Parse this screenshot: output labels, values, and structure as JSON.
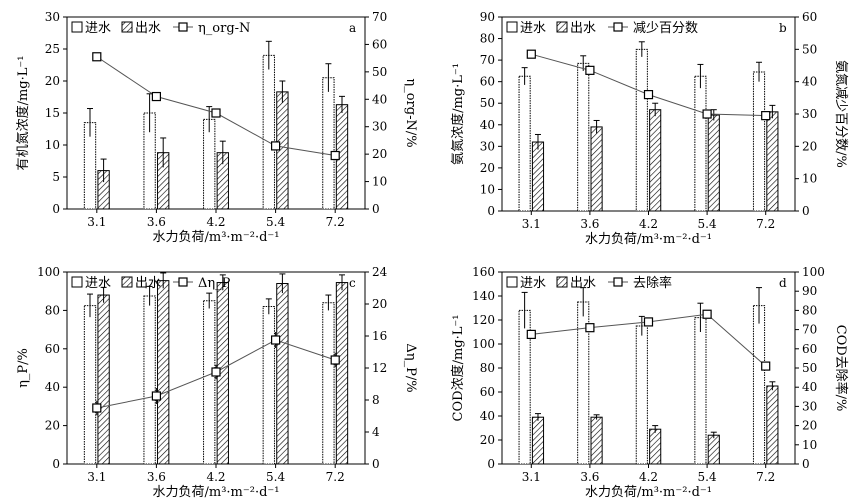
{
  "chart_data": [
    {
      "id": "a",
      "type": "bar",
      "panel_letter": "a",
      "categories": [
        "3.1",
        "3.6",
        "4.2",
        "5.4",
        "7.2"
      ],
      "xlabel": "水力负荷/m³·m⁻²·d⁻¹",
      "ylabel": "有机氮浓度/mg·L⁻¹",
      "y2label": "η_org-N/%",
      "ylim": [
        0,
        30
      ],
      "yticks": [
        0,
        5,
        10,
        15,
        20,
        25,
        30
      ],
      "y2lim": [
        0,
        70
      ],
      "y2ticks": [
        0,
        10,
        20,
        30,
        40,
        50,
        60,
        70
      ],
      "legend": {
        "placement": "top-left",
        "labels": [
          "进水",
          "出水",
          "η_org-N"
        ]
      },
      "series": [
        {
          "name": "进水",
          "kind": "bar-open",
          "values": [
            13.5,
            15.0,
            14.0,
            24.0,
            20.5
          ],
          "errors": [
            2.2,
            3.0,
            2.0,
            2.2,
            2.2
          ]
        },
        {
          "name": "出水",
          "kind": "bar-hatched",
          "values": [
            6.0,
            8.8,
            8.8,
            18.3,
            16.3
          ],
          "errors": [
            1.8,
            2.3,
            1.8,
            1.7,
            1.3
          ]
        },
        {
          "name": "η_org-N",
          "kind": "line-square",
          "axis": "right",
          "values": [
            55.5,
            41.0,
            35.0,
            23.0,
            19.5
          ],
          "errors": [
            1.0,
            1.0,
            1.0,
            1.0,
            1.2
          ]
        }
      ]
    },
    {
      "id": "b",
      "type": "bar",
      "panel_letter": "b",
      "categories": [
        "3.1",
        "3.6",
        "4.2",
        "5.4",
        "7.2"
      ],
      "xlabel": "水力负荷/m³·m⁻²·d⁻¹",
      "ylabel": "氨氮浓度/mg·L⁻¹",
      "y2label": "氨氮减少百分数/%",
      "ylim": [
        0,
        90
      ],
      "yticks": [
        0,
        10,
        20,
        30,
        40,
        50,
        60,
        70,
        80,
        90
      ],
      "y2lim": [
        0,
        60
      ],
      "y2ticks": [
        0,
        10,
        20,
        30,
        40,
        50,
        60
      ],
      "legend": {
        "placement": "top-left",
        "labels": [
          "进水",
          "出水",
          "减少百分数"
        ]
      },
      "series": [
        {
          "name": "进水",
          "kind": "bar-open",
          "values": [
            62.5,
            68.5,
            75.0,
            62.5,
            64.5
          ],
          "errors": [
            4.0,
            3.5,
            3.5,
            5.5,
            4.5
          ]
        },
        {
          "name": "出水",
          "kind": "bar-hatched",
          "values": [
            32.0,
            39.0,
            47.0,
            44.5,
            46.0
          ],
          "errors": [
            3.5,
            3.0,
            3.0,
            2.5,
            3.0
          ]
        },
        {
          "name": "减少百分数",
          "kind": "line-square",
          "axis": "right",
          "values": [
            48.5,
            43.5,
            36.0,
            30.0,
            29.5
          ],
          "errors": [
            0.7,
            0.7,
            0.7,
            0.7,
            0.7
          ]
        }
      ]
    },
    {
      "id": "c",
      "type": "bar",
      "panel_letter": "c",
      "categories": [
        "3.1",
        "3.6",
        "4.2",
        "5.4",
        "7.2"
      ],
      "xlabel": "水力负荷/m³·m⁻²·d⁻¹",
      "ylabel": "η_P/%",
      "y2label": "Δη_P/%",
      "ylim": [
        0,
        100
      ],
      "yticks": [
        0,
        20,
        40,
        60,
        80,
        100
      ],
      "y2lim": [
        0,
        24
      ],
      "y2ticks": [
        0,
        4,
        8,
        12,
        16,
        20,
        24
      ],
      "legend": {
        "placement": "top-left",
        "labels": [
          "进水",
          "出水",
          "Δη_P"
        ]
      },
      "series": [
        {
          "name": "进水",
          "kind": "bar-open",
          "values": [
            82.5,
            87.5,
            85.0,
            82.0,
            84.0
          ],
          "errors": [
            6.0,
            5.0,
            4.0,
            4.0,
            4.0
          ]
        },
        {
          "name": "出水",
          "kind": "bar-hatched",
          "values": [
            88.0,
            95.5,
            94.5,
            94.0,
            94.5
          ],
          "errors": [
            4.0,
            4.0,
            4.0,
            5.0,
            4.0
          ]
        },
        {
          "name": "Δη_P",
          "kind": "line-square",
          "axis": "right",
          "values": [
            7.0,
            8.5,
            11.5,
            15.5,
            13.0
          ],
          "errors": [
            0.9,
            1.0,
            0.9,
            1.0,
            0.9
          ]
        }
      ]
    },
    {
      "id": "d",
      "type": "bar",
      "panel_letter": "d",
      "categories": [
        "3.1",
        "3.6",
        "4.2",
        "5.4",
        "7.2"
      ],
      "xlabel": "水力负荷/m³·m⁻²·d⁻¹",
      "ylabel": "COD浓度/mg·L⁻¹",
      "y2label": "COD去除率/%",
      "ylim": [
        0,
        160
      ],
      "yticks": [
        0,
        20,
        40,
        60,
        80,
        100,
        120,
        140,
        160
      ],
      "y2lim": [
        0,
        100
      ],
      "y2ticks": [
        0,
        10,
        20,
        30,
        40,
        50,
        60,
        70,
        80,
        90,
        100
      ],
      "legend": {
        "placement": "top-left",
        "labels": [
          "进水",
          "出水",
          "去除率"
        ]
      },
      "series": [
        {
          "name": "进水",
          "kind": "bar-open",
          "values": [
            128.0,
            135.0,
            115.0,
            122.0,
            132.0
          ],
          "errors": [
            15.0,
            12.0,
            8.0,
            12.0,
            15.0
          ]
        },
        {
          "name": "出水",
          "kind": "bar-hatched",
          "values": [
            39.0,
            39.0,
            29.0,
            24.0,
            65.0
          ],
          "errors": [
            3.0,
            2.0,
            3.0,
            2.5,
            3.5
          ]
        },
        {
          "name": "去除率",
          "kind": "line-square",
          "axis": "right",
          "values": [
            67.5,
            71.0,
            74.0,
            78.0,
            51.0
          ],
          "errors": [
            2.0,
            2.0,
            2.0,
            2.0,
            2.0
          ]
        }
      ]
    }
  ]
}
